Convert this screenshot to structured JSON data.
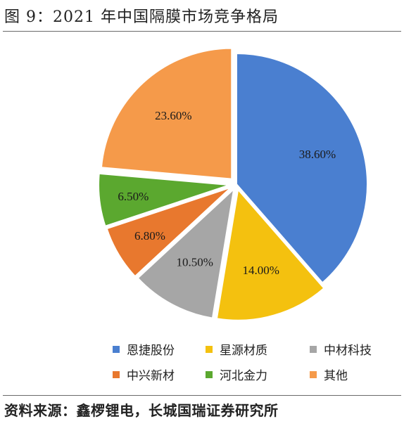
{
  "figure": {
    "title": "图 9：2021 年中国隔膜市场竞争格局",
    "source": "资料来源：鑫椤锂电，长城国瑞证券研究所"
  },
  "chart_data": {
    "type": "pie",
    "title": "",
    "legend_position": "bottom",
    "slices": [
      {
        "name": "恩捷股份",
        "value": 38.6,
        "label": "38.60%",
        "color": "#4A7FD0"
      },
      {
        "name": "星源材质",
        "value": 14.0,
        "label": "14.00%",
        "color": "#F4C10F"
      },
      {
        "name": "中材科技",
        "value": 10.5,
        "label": "10.50%",
        "color": "#A6A6A6"
      },
      {
        "name": "中兴新材",
        "value": 6.8,
        "label": "6.80%",
        "color": "#E8782E"
      },
      {
        "name": "河北金力",
        "value": 6.5,
        "label": "6.50%",
        "color": "#5BA82F"
      },
      {
        "name": "其他",
        "value": 23.6,
        "label": "23.60%",
        "color": "#F59A4A"
      }
    ]
  }
}
